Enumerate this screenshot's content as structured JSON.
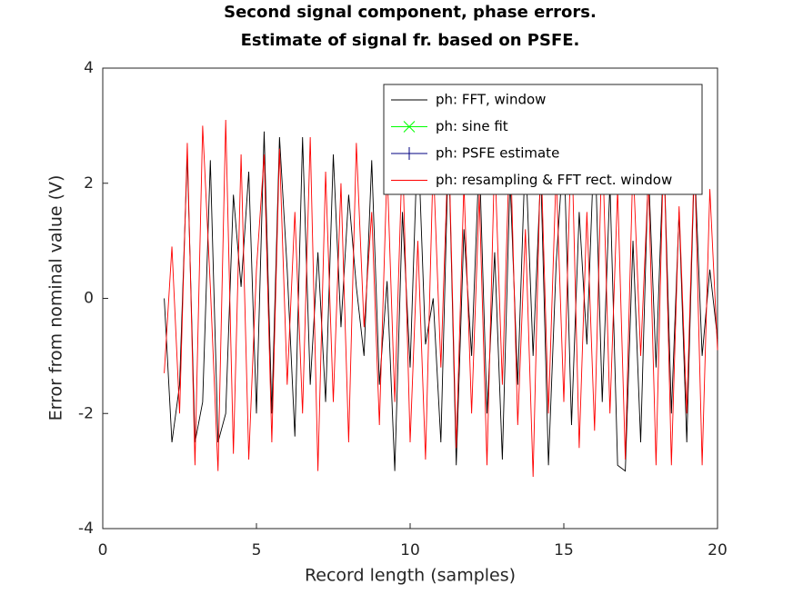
{
  "chart_data": {
    "type": "line",
    "title": [
      "Second signal component, phase errors.",
      "Estimate of signal fr. based on PSFE."
    ],
    "xlabel": "Record length (samples)",
    "ylabel": "Error from nominal value (V)",
    "xlim": [
      0,
      20
    ],
    "ylim": [
      -4,
      4
    ],
    "xticks": [
      0,
      5,
      10,
      15,
      20
    ],
    "yticks": [
      -4,
      -2,
      0,
      2,
      4
    ],
    "legend": "top-right",
    "x": [
      2,
      2.25,
      2.5,
      2.75,
      3,
      3.25,
      3.5,
      3.75,
      4,
      4.25,
      4.5,
      4.75,
      5,
      5.25,
      5.5,
      5.75,
      6,
      6.25,
      6.5,
      6.75,
      7,
      7.25,
      7.5,
      7.75,
      8,
      8.25,
      8.5,
      8.75,
      9,
      9.25,
      9.5,
      9.75,
      10,
      10.25,
      10.5,
      10.75,
      11,
      11.25,
      11.5,
      11.75,
      12,
      12.25,
      12.5,
      12.75,
      13,
      13.25,
      13.5,
      13.75,
      14,
      14.25,
      14.5,
      14.75,
      15,
      15.25,
      15.5,
      15.75,
      16,
      16.25,
      16.5,
      16.75,
      17,
      17.25,
      17.5,
      17.75,
      18,
      18.25,
      18.5,
      18.75,
      19,
      19.25,
      19.5,
      19.75,
      20
    ],
    "series": [
      {
        "name": "ph: FFT, window",
        "color": "#000000",
        "values": [
          0,
          -2.5,
          -1.5,
          2.5,
          -2.5,
          -1.8,
          2.4,
          -2.5,
          -2.0,
          1.8,
          0.2,
          2.2,
          -2.0,
          2.9,
          -2.0,
          2.8,
          0.5,
          -2.4,
          2.8,
          -1.5,
          0.8,
          -1.8,
          2.5,
          -0.5,
          1.8,
          0.2,
          -1.0,
          2.4,
          -1.5,
          0.3,
          -3.0,
          1.5,
          -1.2,
          2.9,
          -0.8,
          0.0,
          -2.5,
          2.7,
          -2.9,
          1.2,
          -1.0,
          2.5,
          -2.0,
          0.8,
          -2.8,
          2.1,
          -1.5,
          2.6,
          -1.0,
          2.2,
          -2.9,
          0.6,
          2.7,
          -2.2,
          1.5,
          -0.8,
          2.9,
          -1.8,
          2.0,
          -2.9,
          -3.0,
          1.0,
          -2.5,
          2.3,
          -1.2,
          2.6,
          -2.0,
          1.5,
          -2.5,
          2.4,
          -1.0,
          0.5,
          -0.7
        ]
      },
      {
        "name": "ph: sine fit",
        "color": "#00ff00",
        "marker": "x",
        "values": [
          null,
          null,
          null,
          null,
          null,
          null,
          null,
          null,
          null,
          null,
          null,
          null,
          null,
          null,
          null,
          null,
          null,
          null,
          null,
          null,
          null,
          null,
          null,
          null,
          null,
          null,
          null,
          null,
          null,
          null,
          null,
          null,
          null,
          null,
          null,
          null,
          null,
          null,
          null,
          null,
          null,
          null,
          null,
          null,
          null,
          null,
          null,
          null,
          null,
          null,
          null,
          null,
          null,
          null,
          null,
          null,
          null,
          null,
          null,
          null,
          null,
          null,
          null,
          null,
          null,
          null,
          null,
          null,
          null,
          null,
          null,
          null,
          null
        ]
      },
      {
        "name": "ph: PSFE estimate",
        "color": "#000080",
        "marker": "+",
        "values": [
          null,
          null,
          null,
          null,
          null,
          null,
          null,
          null,
          null,
          null,
          null,
          null,
          null,
          null,
          null,
          null,
          null,
          null,
          null,
          null,
          null,
          null,
          null,
          null,
          null,
          null,
          null,
          null,
          null,
          null,
          null,
          null,
          null,
          null,
          null,
          null,
          null,
          null,
          null,
          null,
          null,
          null,
          null,
          null,
          null,
          null,
          null,
          null,
          null,
          null,
          null,
          null,
          null,
          null,
          null,
          null,
          null,
          null,
          null,
          null,
          null,
          null,
          null,
          null,
          null,
          null,
          null,
          null,
          null,
          null,
          null,
          null,
          null
        ]
      },
      {
        "name": "ph: resampling & FFT rect. window",
        "color": "#ff0000",
        "values": [
          -1.3,
          0.9,
          -2.0,
          2.7,
          -2.9,
          3.0,
          0.2,
          -3.0,
          3.1,
          -2.7,
          2.5,
          -2.8,
          0.5,
          2.5,
          -2.5,
          2.6,
          -1.5,
          1.5,
          -2.0,
          2.8,
          -3.0,
          2.2,
          -1.8,
          2.0,
          -2.5,
          2.7,
          -0.5,
          1.5,
          -2.2,
          2.3,
          -1.8,
          2.6,
          -2.5,
          1.0,
          -2.8,
          2.4,
          -1.2,
          2.8,
          -2.6,
          2.0,
          -2.0,
          1.8,
          -2.9,
          2.5,
          -1.5,
          2.9,
          -2.2,
          1.2,
          -3.1,
          2.6,
          -2.0,
          2.2,
          -1.8,
          2.9,
          -2.6,
          1.5,
          -2.3,
          2.8,
          -2.0,
          1.9,
          -2.8,
          2.4,
          -1.0,
          2.1,
          -2.9,
          2.7,
          -2.9,
          1.6,
          -2.0,
          2.5,
          -2.9,
          1.9,
          -0.9
        ]
      }
    ]
  }
}
